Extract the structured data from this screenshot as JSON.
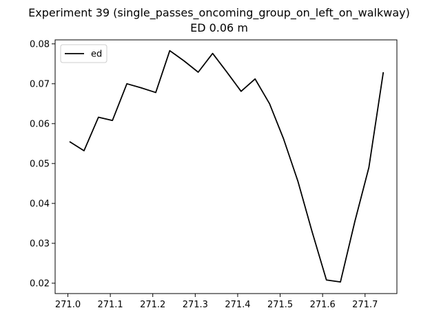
{
  "chart_data": {
    "type": "line",
    "title_line1": "Experiment 39 (single_passes_oncoming_group_on_left_on_walkway)",
    "title_line2": "ED 0.06 m",
    "xlabel": "",
    "ylabel": "",
    "xlim": [
      270.97,
      271.775
    ],
    "ylim": [
      0.0174,
      0.081
    ],
    "xticks": [
      271.0,
      271.1,
      271.2,
      271.3,
      271.4,
      271.5,
      271.6,
      271.7
    ],
    "xtick_labels": [
      "271.0",
      "271.1",
      "271.2",
      "271.3",
      "271.4",
      "271.5",
      "271.6",
      "271.7"
    ],
    "yticks": [
      0.02,
      0.03,
      0.04,
      0.05,
      0.06,
      0.07,
      0.08
    ],
    "ytick_labels": [
      "0.02",
      "0.03",
      "0.04",
      "0.05",
      "0.06",
      "0.07",
      "0.08"
    ],
    "grid": false,
    "legend_position": "upper-left",
    "series": [
      {
        "name": "ed",
        "color": "#000000",
        "x": [
          271.004,
          271.038,
          271.072,
          271.105,
          271.139,
          271.172,
          271.207,
          271.24,
          271.274,
          271.307,
          271.341,
          271.374,
          271.408,
          271.441,
          271.475,
          271.508,
          271.542,
          271.575,
          271.609,
          271.642,
          271.676,
          271.709,
          271.743
        ],
        "y": [
          0.0555,
          0.0532,
          0.0616,
          0.0608,
          0.07,
          0.069,
          0.0678,
          0.0783,
          0.0757,
          0.0729,
          0.0776,
          0.073,
          0.0681,
          0.0712,
          0.065,
          0.0562,
          0.0455,
          0.033,
          0.0208,
          0.0203,
          0.0355,
          0.049,
          0.0729
        ]
      }
    ]
  }
}
